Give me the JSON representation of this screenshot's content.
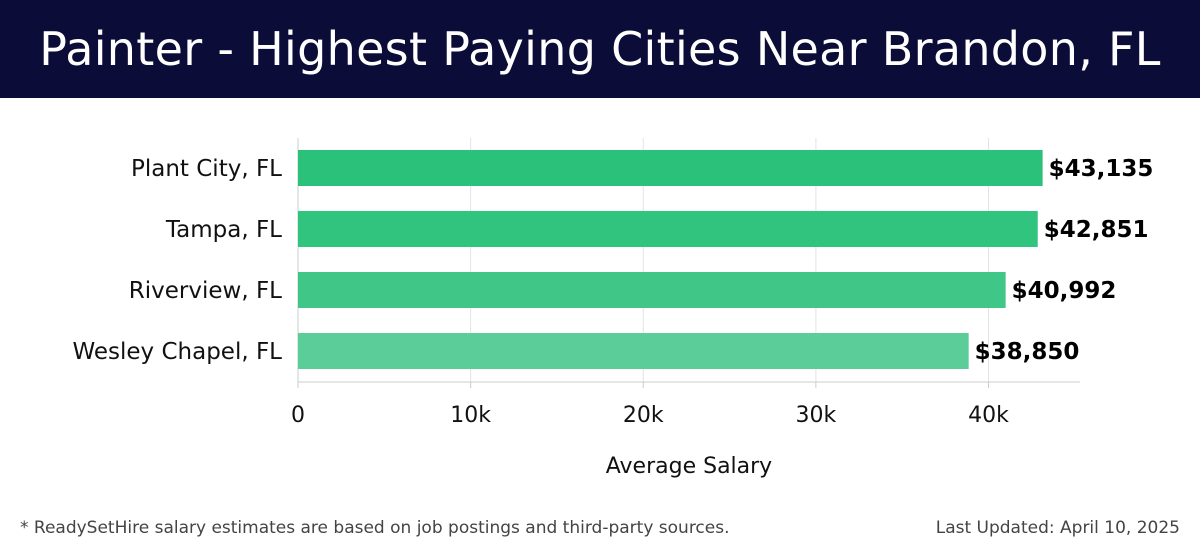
{
  "header": {
    "title": "Painter - Highest Paying Cities Near Brandon, FL",
    "background": "#0b0d38"
  },
  "chart_data": {
    "type": "bar",
    "orientation": "horizontal",
    "title": "Painter - Highest Paying Cities Near Brandon, FL",
    "categories": [
      "Plant City, FL",
      "Tampa, FL",
      "Riverview, FL",
      "Wesley Chapel, FL"
    ],
    "values": [
      43135,
      42851,
      40992,
      38850
    ],
    "value_labels": [
      "$43,135",
      "$42,851",
      "$40,992",
      "$38,850"
    ],
    "colors": [
      "#2bc17b",
      "#30c47e",
      "#40c787",
      "#5acd99"
    ],
    "xlabel": "Average Salary",
    "ylabel": "",
    "xlim": [
      0,
      45300
    ],
    "x_ticks": [
      0,
      10000,
      20000,
      30000,
      40000
    ],
    "x_tick_labels": [
      "0",
      "10k",
      "20k",
      "30k",
      "40k"
    ],
    "grid": true
  },
  "footer": {
    "note": "* ReadySetHire salary estimates are based on job postings and third-party sources.",
    "updated": "Last Updated: April 10, 2025"
  }
}
